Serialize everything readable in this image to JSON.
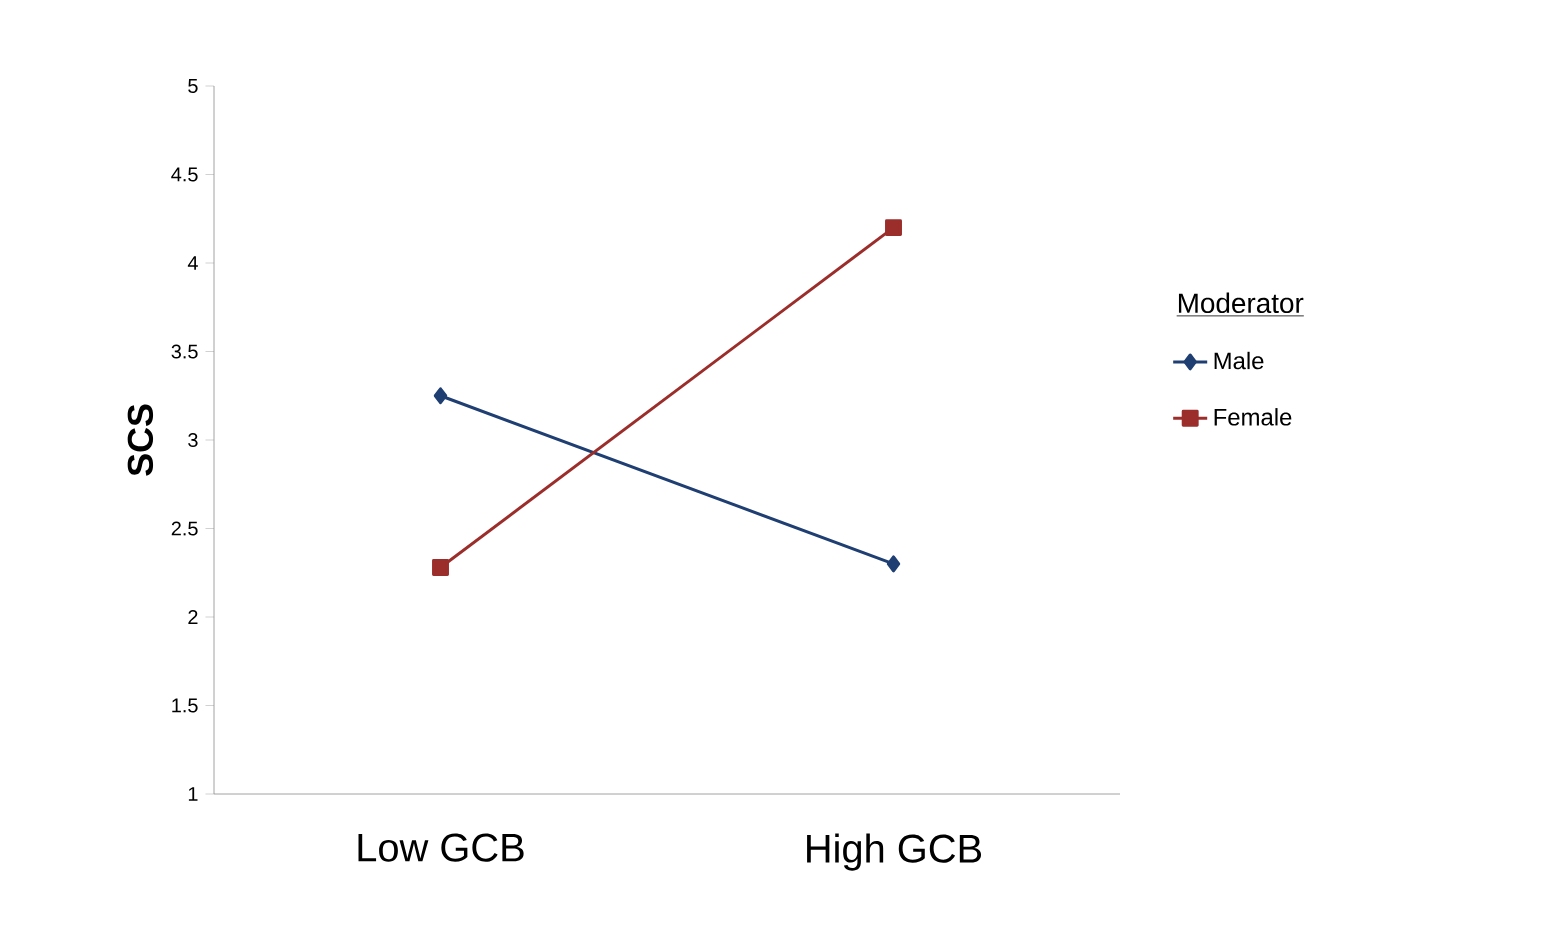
{
  "chart_data": {
    "type": "line",
    "ylabel": "SCS",
    "legend_title": "Moderator",
    "categories": [
      "Low GCB",
      "High GCB"
    ],
    "series": [
      {
        "name": "Male",
        "color": "#1f3f73",
        "values": [
          3.25,
          2.3
        ],
        "marker": "diamond"
      },
      {
        "name": "Female",
        "color": "#9b2d2a",
        "values": [
          2.28,
          4.2
        ],
        "marker": "square"
      }
    ],
    "ylim": [
      1,
      5
    ],
    "yticks": [
      1,
      1.5,
      2,
      2.5,
      3,
      3.5,
      4,
      4.5,
      5
    ],
    "grid": false,
    "legend": "right",
    "line_style": "solid"
  }
}
